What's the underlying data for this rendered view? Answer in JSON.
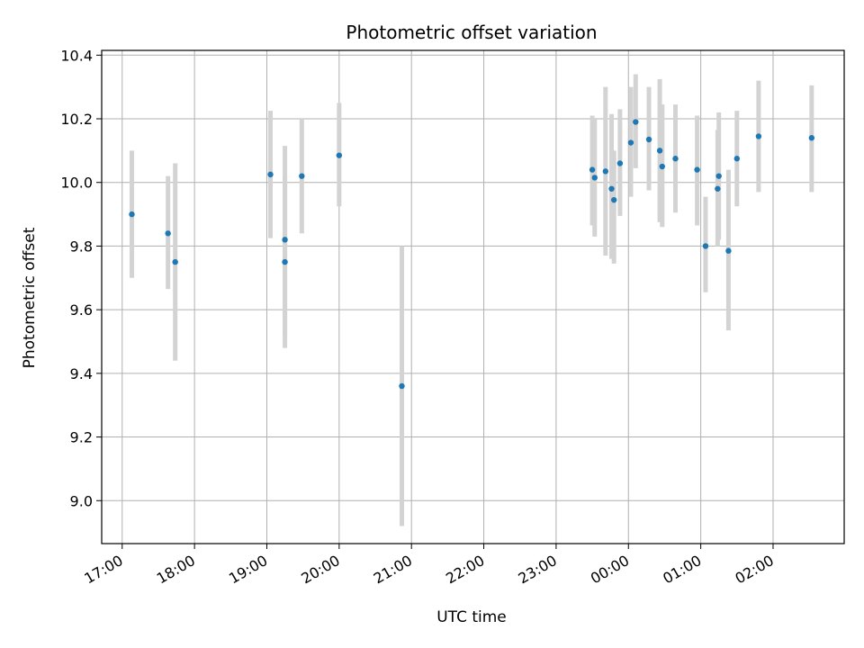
{
  "chart_data": {
    "type": "scatter",
    "title": "Photometric offset variation",
    "xlabel": "UTC time",
    "ylabel": "Photometric offset",
    "x_ticks": [
      "17:00",
      "18:00",
      "19:00",
      "20:00",
      "21:00",
      "22:00",
      "23:00",
      "00:00",
      "01:00",
      "02:00"
    ],
    "y_ticks": [
      "9.0",
      "9.2",
      "9.4",
      "9.6",
      "9.8",
      "10.0",
      "10.2",
      "10.4"
    ],
    "xlim": [
      "16:43",
      "02:59"
    ],
    "ylim": [
      8.865,
      10.415
    ],
    "grid": true,
    "legend": "none",
    "errorbar_color": "#d3d3d3",
    "point_color": "#1f77b4",
    "points": [
      {
        "x": "17:08",
        "y": 9.9,
        "yerr_low": 9.7,
        "yerr_high": 10.1
      },
      {
        "x": "17:38",
        "y": 9.84,
        "yerr_low": 9.665,
        "yerr_high": 10.02
      },
      {
        "x": "17:44",
        "y": 9.75,
        "yerr_low": 9.44,
        "yerr_high": 10.06
      },
      {
        "x": "19:03",
        "y": 10.025,
        "yerr_low": 9.825,
        "yerr_high": 10.225
      },
      {
        "x": "19:15",
        "y": 9.82,
        "yerr_low": 9.52,
        "yerr_high": 10.115
      },
      {
        "x": "19:15",
        "y": 9.75,
        "yerr_low": 9.48,
        "yerr_high": 10.02
      },
      {
        "x": "19:29",
        "y": 10.02,
        "yerr_low": 9.84,
        "yerr_high": 10.2
      },
      {
        "x": "20:00",
        "y": 10.085,
        "yerr_low": 9.925,
        "yerr_high": 10.25
      },
      {
        "x": "20:52",
        "y": 9.36,
        "yerr_low": 8.92,
        "yerr_high": 9.8
      },
      {
        "x": "23:30",
        "y": 10.04,
        "yerr_low": 9.865,
        "yerr_high": 10.21
      },
      {
        "x": "23:32",
        "y": 10.015,
        "yerr_low": 9.83,
        "yerr_high": 10.2
      },
      {
        "x": "23:41",
        "y": 10.035,
        "yerr_low": 9.77,
        "yerr_high": 10.3
      },
      {
        "x": "23:46",
        "y": 9.98,
        "yerr_low": 9.76,
        "yerr_high": 10.215
      },
      {
        "x": "23:48",
        "y": 9.945,
        "yerr_low": 9.745,
        "yerr_high": 10.1
      },
      {
        "x": "23:53",
        "y": 10.06,
        "yerr_low": 9.895,
        "yerr_high": 10.23
      },
      {
        "x": "00:02",
        "y": 10.125,
        "yerr_low": 9.955,
        "yerr_high": 10.3
      },
      {
        "x": "00:06",
        "y": 10.19,
        "yerr_low": 10.045,
        "yerr_high": 10.34
      },
      {
        "x": "00:17",
        "y": 10.135,
        "yerr_low": 9.975,
        "yerr_high": 10.3
      },
      {
        "x": "00:26",
        "y": 10.1,
        "yerr_low": 9.875,
        "yerr_high": 10.325
      },
      {
        "x": "00:28",
        "y": 10.05,
        "yerr_low": 9.86,
        "yerr_high": 10.245
      },
      {
        "x": "00:39",
        "y": 10.075,
        "yerr_low": 9.905,
        "yerr_high": 10.245
      },
      {
        "x": "00:57",
        "y": 10.04,
        "yerr_low": 9.865,
        "yerr_high": 10.21
      },
      {
        "x": "01:04",
        "y": 9.8,
        "yerr_low": 9.655,
        "yerr_high": 9.955
      },
      {
        "x": "01:14",
        "y": 9.98,
        "yerr_low": 9.8,
        "yerr_high": 10.165
      },
      {
        "x": "01:15",
        "y": 10.02,
        "yerr_low": 9.82,
        "yerr_high": 10.22
      },
      {
        "x": "01:23",
        "y": 9.785,
        "yerr_low": 9.535,
        "yerr_high": 10.04
      },
      {
        "x": "01:30",
        "y": 10.075,
        "yerr_low": 9.925,
        "yerr_high": 10.225
      },
      {
        "x": "01:48",
        "y": 10.145,
        "yerr_low": 9.97,
        "yerr_high": 10.32
      },
      {
        "x": "02:32",
        "y": 10.14,
        "yerr_low": 9.97,
        "yerr_high": 10.305
      }
    ]
  }
}
